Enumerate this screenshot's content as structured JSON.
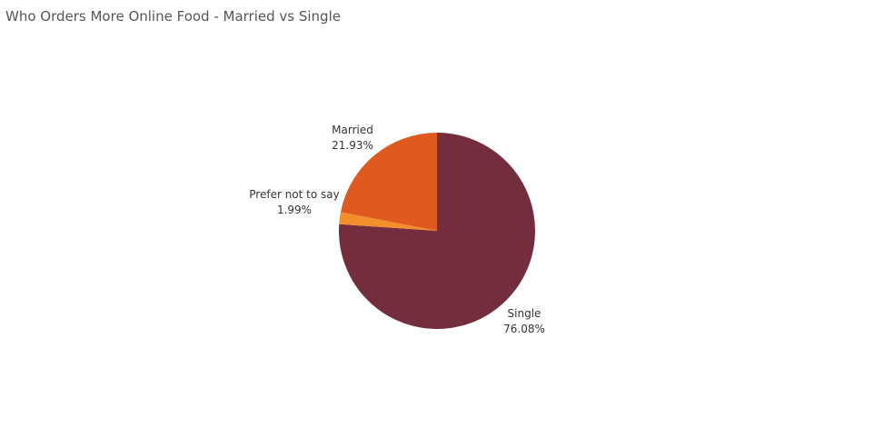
{
  "chart_data": {
    "type": "pie",
    "title": "Who Orders More Online Food - Married vs Single",
    "slices": [
      {
        "name": "Single",
        "value": 76.08,
        "label": "76.08%",
        "color": "#742d3d"
      },
      {
        "name": "Prefer not to say",
        "value": 1.99,
        "label": "1.99%",
        "color": "#f28e2b"
      },
      {
        "name": "Married",
        "value": 21.93,
        "label": "21.93%",
        "color": "#e0591e"
      }
    ],
    "start_angle": "12 o'clock",
    "direction": "clockwise",
    "legend": "none",
    "labels": "outside slices, category name above percentage"
  }
}
